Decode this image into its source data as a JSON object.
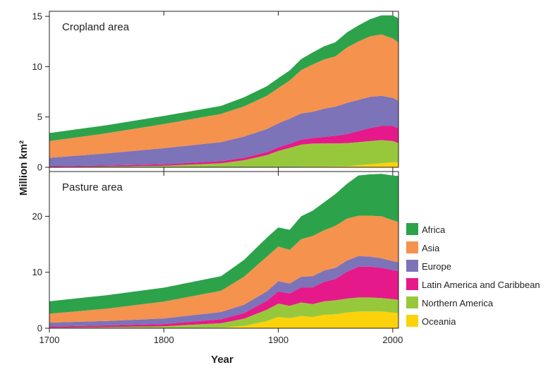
{
  "ylabel": "Million km²",
  "xlabel": "Year",
  "colors": {
    "Africa": "#2ca34a",
    "Asia": "#f5924e",
    "Europe": "#7c73b8",
    "Latin America and Caribbean": "#e6198a",
    "Northern America": "#97c83c",
    "Oceania": "#fcd20b"
  },
  "chart_data": [
    {
      "type": "area",
      "stacked": true,
      "title": "Cropland area",
      "xlim": [
        1700,
        2005
      ],
      "ylim": [
        0,
        15.5
      ],
      "xticks": [
        1700,
        1800,
        1900,
        2000
      ],
      "yticks": [
        0,
        5,
        10,
        15
      ],
      "x": [
        1700,
        1750,
        1800,
        1850,
        1870,
        1890,
        1900,
        1910,
        1920,
        1930,
        1940,
        1950,
        1960,
        1970,
        1980,
        1990,
        2000,
        2005
      ],
      "series": [
        {
          "name": "Oceania",
          "values": [
            0.0,
            0.0,
            0.0,
            0.0,
            0.0,
            0.01,
            0.02,
            0.03,
            0.05,
            0.06,
            0.07,
            0.08,
            0.1,
            0.2,
            0.3,
            0.4,
            0.5,
            0.5
          ]
        },
        {
          "name": "Northern America",
          "values": [
            0.03,
            0.08,
            0.15,
            0.4,
            0.7,
            1.2,
            1.6,
            1.9,
            2.2,
            2.3,
            2.3,
            2.3,
            2.3,
            2.3,
            2.3,
            2.3,
            2.1,
            1.9
          ]
        },
        {
          "name": "Latin America and Caribbean",
          "values": [
            0.07,
            0.1,
            0.15,
            0.2,
            0.25,
            0.3,
            0.35,
            0.4,
            0.5,
            0.55,
            0.65,
            0.75,
            0.9,
            1.1,
            1.3,
            1.4,
            1.5,
            1.5
          ]
        },
        {
          "name": "Europe",
          "values": [
            0.85,
            1.2,
            1.6,
            1.9,
            2.1,
            2.3,
            2.4,
            2.5,
            2.6,
            2.6,
            2.8,
            2.9,
            3.1,
            3.1,
            3.1,
            3.0,
            2.8,
            2.7
          ]
        },
        {
          "name": "Asia",
          "values": [
            1.65,
            2.0,
            2.4,
            2.8,
            3.0,
            3.3,
            3.5,
            3.8,
            4.3,
            4.7,
            4.9,
            5.0,
            5.5,
            5.8,
            6.0,
            6.1,
            5.9,
            5.8
          ]
        },
        {
          "name": "Africa",
          "values": [
            0.8,
            0.8,
            0.8,
            0.8,
            0.9,
            0.95,
            0.98,
            1.0,
            1.1,
            1.2,
            1.3,
            1.4,
            1.5,
            1.6,
            1.7,
            1.9,
            2.3,
            2.4
          ]
        }
      ]
    },
    {
      "type": "area",
      "stacked": true,
      "title": "Pasture area",
      "xlim": [
        1700,
        2005
      ],
      "ylim": [
        0,
        28
      ],
      "xticks": [
        1700,
        1800,
        1900,
        2000
      ],
      "yticks": [
        0,
        10,
        20
      ],
      "x": [
        1700,
        1750,
        1800,
        1850,
        1870,
        1890,
        1900,
        1910,
        1920,
        1930,
        1940,
        1950,
        1960,
        1970,
        1980,
        1990,
        2000,
        2005
      ],
      "series": [
        {
          "name": "Oceania",
          "values": [
            0.0,
            0.0,
            0.05,
            0.1,
            0.4,
            1.3,
            2.0,
            1.8,
            2.2,
            2.0,
            2.4,
            2.5,
            2.8,
            3.0,
            3.0,
            3.0,
            2.8,
            2.7
          ]
        },
        {
          "name": "Northern America",
          "values": [
            0.1,
            0.2,
            0.3,
            0.8,
            1.3,
            2.0,
            2.4,
            2.2,
            2.4,
            2.3,
            2.4,
            2.5,
            2.5,
            2.5,
            2.5,
            2.4,
            2.4,
            2.4
          ]
        },
        {
          "name": "Latin America and Caribbean",
          "values": [
            0.2,
            0.3,
            0.4,
            0.7,
            1.0,
            1.6,
            2.2,
            2.2,
            2.7,
            3.0,
            3.5,
            3.8,
            4.8,
            5.5,
            5.5,
            5.4,
            5.2,
            5.1
          ]
        },
        {
          "name": "Europe",
          "values": [
            0.7,
            0.8,
            1.0,
            1.3,
            1.5,
            1.7,
            1.8,
            1.8,
            1.9,
            2.0,
            2.0,
            2.0,
            2.0,
            1.9,
            1.8,
            1.7,
            1.6,
            1.6
          ]
        },
        {
          "name": "Asia",
          "values": [
            1.6,
            2.2,
            3.0,
            3.8,
            5.0,
            6.2,
            6.2,
            6.0,
            6.7,
            7.2,
            7.2,
            7.5,
            7.5,
            7.2,
            7.3,
            7.5,
            7.3,
            7.2
          ]
        },
        {
          "name": "Africa",
          "values": [
            2.2,
            2.4,
            2.5,
            2.6,
            3.0,
            3.4,
            3.4,
            3.6,
            4.1,
            4.5,
            5.0,
            5.7,
            6.2,
            7.2,
            7.4,
            7.6,
            8.0,
            8.2
          ]
        }
      ]
    }
  ],
  "legend": [
    {
      "label": "Africa",
      "color": "#2ca34a"
    },
    {
      "label": "Asia",
      "color": "#f5924e"
    },
    {
      "label": "Europe",
      "color": "#7c73b8"
    },
    {
      "label": "Latin America and Caribbean",
      "color": "#e6198a"
    },
    {
      "label": "Northern America",
      "color": "#97c83c"
    },
    {
      "label": "Oceania",
      "color": "#fcd20b"
    }
  ]
}
